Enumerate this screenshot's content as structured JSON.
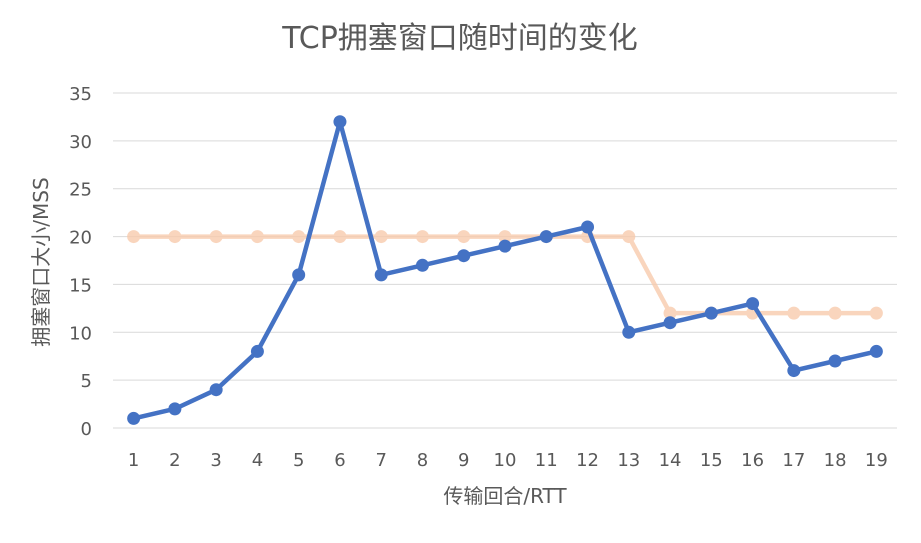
{
  "chart_data": {
    "type": "line",
    "title": "TCP拥塞窗口随时间的变化",
    "xlabel": "传输回合/RTT",
    "ylabel": "拥塞窗口大小/MSS",
    "categories": [
      "1",
      "2",
      "3",
      "4",
      "5",
      "6",
      "7",
      "8",
      "9",
      "10",
      "11",
      "12",
      "13",
      "14",
      "15",
      "16",
      "17",
      "18",
      "19"
    ],
    "ylim": [
      0,
      35
    ],
    "yticks": [
      "0",
      "5",
      "10",
      "15",
      "20",
      "25",
      "30",
      "35"
    ],
    "grid": true,
    "series": [
      {
        "values": [
          20,
          20,
          20,
          20,
          20,
          20,
          20,
          20,
          20,
          20,
          20,
          20,
          20,
          12,
          12,
          12,
          12,
          12,
          12
        ],
        "color": "#f8cbad",
        "opacity": 0.8
      },
      {
        "values": [
          1,
          2,
          4,
          8,
          16,
          32,
          16,
          17,
          18,
          19,
          20,
          21,
          10,
          11,
          12,
          13,
          6,
          7,
          8
        ],
        "color": "#4472c4",
        "opacity": 1
      }
    ]
  }
}
